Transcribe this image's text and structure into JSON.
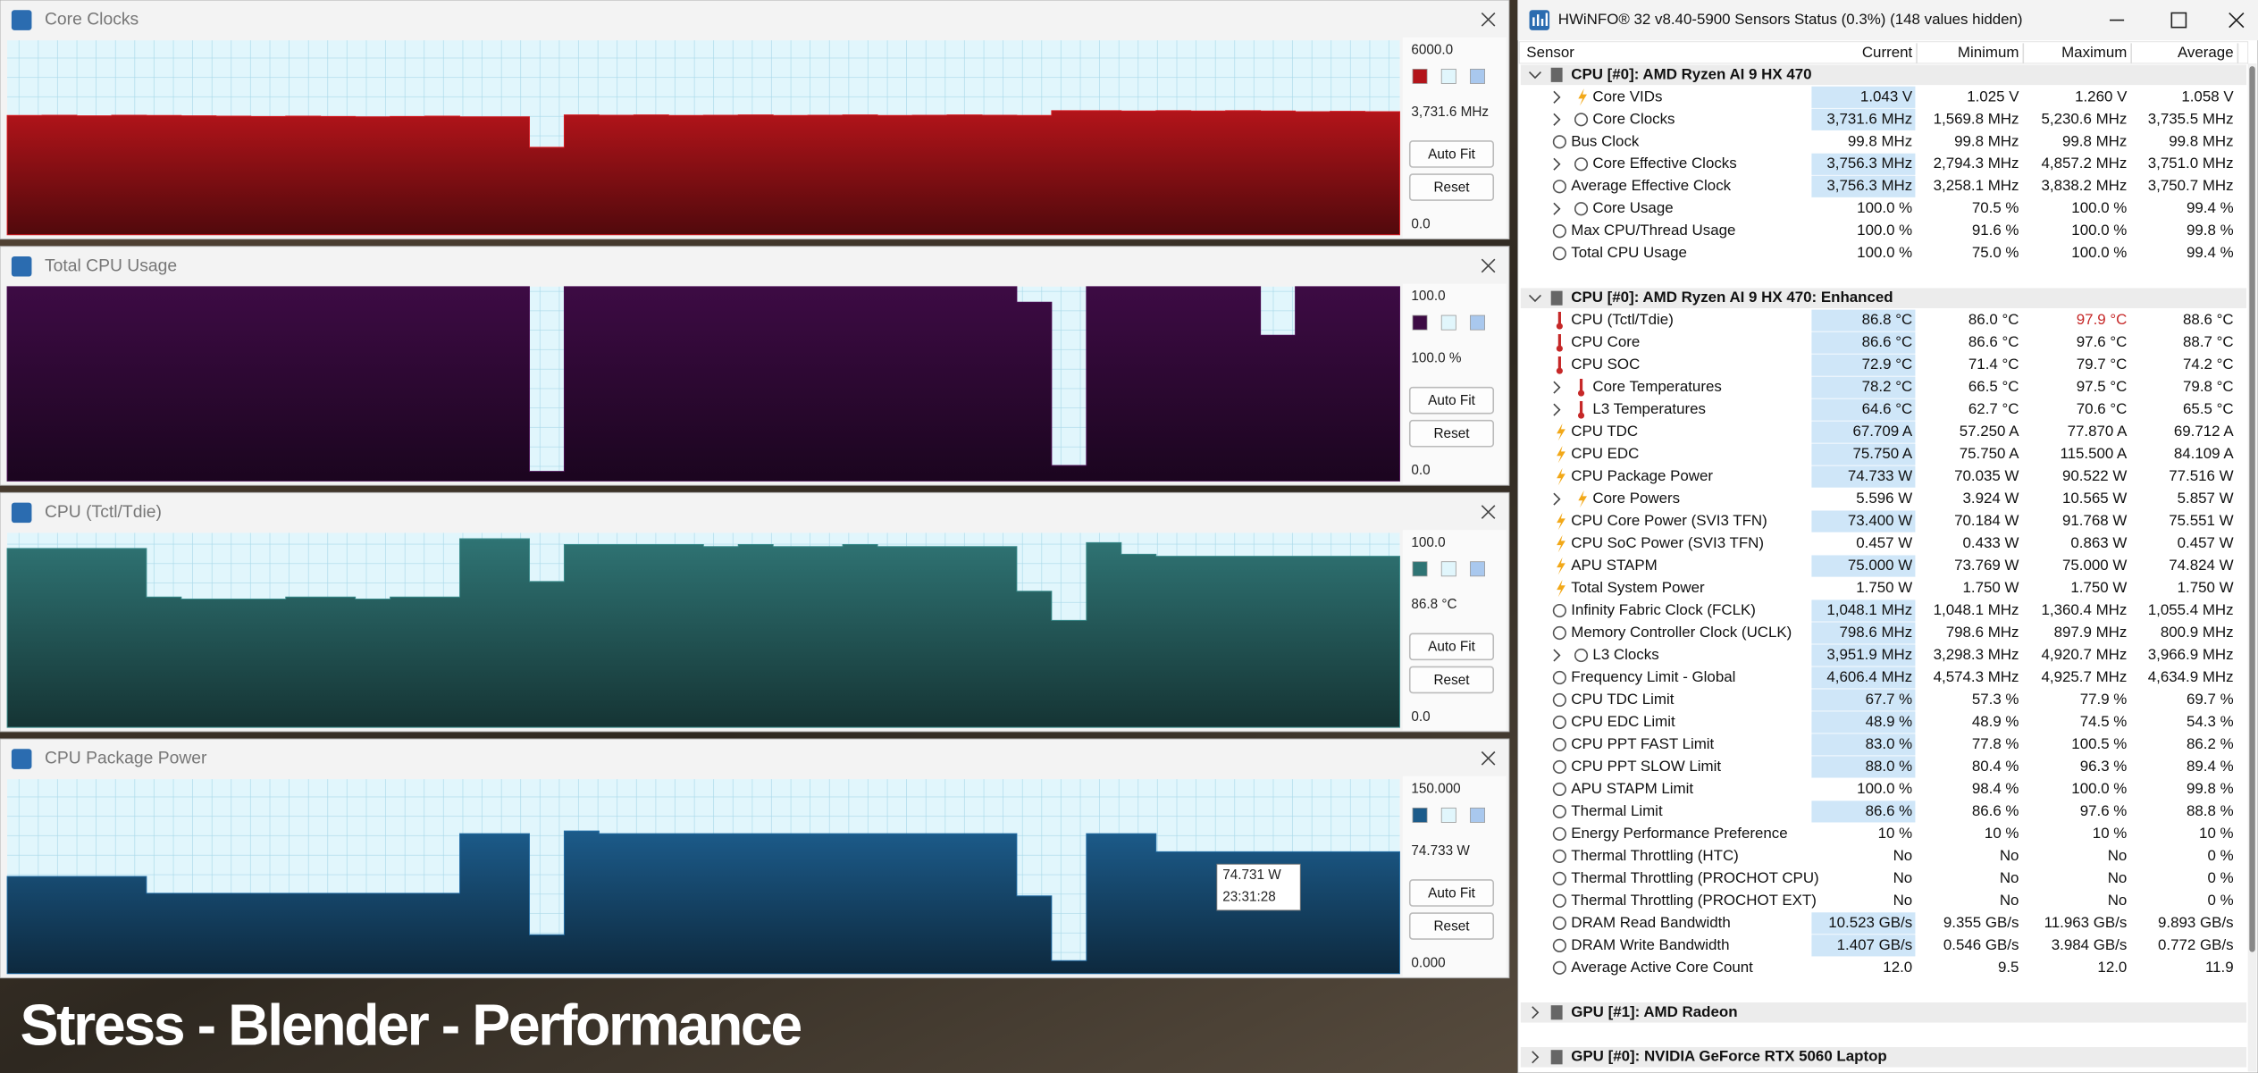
{
  "graphs": [
    {
      "title": "Core Clocks",
      "yticks": [
        {
          "value": 0,
          "label": "0.0"
        },
        {
          "value": 6000,
          "label": "6000.0"
        }
      ],
      "ylim": [
        0,
        6000
      ],
      "current": "3,731.6 MHz",
      "auto_fit": "Auto Fit",
      "reset": "Reset",
      "color": "#b3141a",
      "values": [
        3680,
        3690,
        3670,
        3690,
        3680,
        3670,
        3660,
        3650,
        3660,
        3650,
        3640,
        3650,
        3660,
        3640,
        3640,
        2700,
        3700,
        3690,
        3700,
        3680,
        3690,
        3700,
        3680,
        3690,
        3700,
        3680,
        3690,
        3700,
        3690,
        3680,
        3830,
        3830,
        3820,
        3830,
        3820,
        3830,
        3820,
        3800,
        3810,
        3800
      ]
    },
    {
      "title": "Total CPU Usage",
      "yticks": [
        {
          "value": 0,
          "label": "0.0"
        },
        {
          "value": 100,
          "label": "100.0"
        }
      ],
      "ylim": [
        0,
        100
      ],
      "current": "100.0 %",
      "auto_fit": "Auto Fit",
      "reset": "Reset",
      "color": "#3d0b44",
      "values": [
        100,
        100,
        100,
        100,
        100,
        100,
        100,
        100,
        100,
        100,
        100,
        100,
        100,
        100,
        100,
        5,
        100,
        100,
        100,
        100,
        100,
        100,
        100,
        100,
        100,
        100,
        100,
        100,
        100,
        92,
        8,
        100,
        100,
        100,
        100,
        100,
        75,
        100,
        100,
        100
      ]
    },
    {
      "title": "CPU (Tctl/Tdie)",
      "yticks": [
        {
          "value": 0,
          "label": "0.0"
        },
        {
          "value": 100,
          "label": "100.0"
        }
      ],
      "ylim": [
        0,
        100
      ],
      "current": "86.8 °C",
      "auto_fit": "Auto Fit",
      "reset": "Reset",
      "color": "#2f7474",
      "values": [
        92,
        92,
        92,
        92,
        67,
        66,
        66,
        66,
        67,
        67,
        66,
        67,
        67,
        97,
        97,
        75,
        94,
        94,
        94,
        94,
        93,
        94,
        93,
        93,
        94,
        93,
        93,
        93,
        93,
        70,
        55,
        95,
        89,
        88,
        88,
        88,
        88,
        88,
        88,
        88
      ]
    },
    {
      "title": "CPU Package Power",
      "yticks": [
        {
          "value": 0,
          "label": "0.000"
        },
        {
          "value": 150,
          "label": "150.000"
        }
      ],
      "ylim": [
        0,
        150
      ],
      "current": "74.733 W",
      "auto_fit": "Auto Fit",
      "reset": "Reset",
      "color": "#1c5b8a",
      "values": [
        75,
        75,
        75,
        75,
        62,
        62,
        62,
        62,
        62,
        62,
        62,
        62,
        62,
        108,
        108,
        30,
        110,
        108,
        108,
        108,
        108,
        108,
        108,
        108,
        108,
        108,
        108,
        108,
        108,
        60,
        10,
        108,
        108,
        94,
        94,
        94,
        94,
        94,
        94,
        94
      ],
      "tooltip": [
        "74.731 W",
        "23:31:28"
      ]
    }
  ],
  "caption": "Stress - Blender - Performance",
  "sensors": {
    "title": "HWiNFO® 32 v8.40-5900 Sensors Status (0.3%) (148 values hidden)",
    "columns": [
      "Sensor",
      "Current",
      "Minimum",
      "Maximum",
      "Average"
    ],
    "groups": [
      {
        "title": "CPU [#0]: AMD Ryzen AI 9 HX 470",
        "expanded": true,
        "rows": [
          {
            "label": "Core VIDs",
            "icon": "bolt",
            "expandable": true,
            "highlight": true,
            "cells": [
              "1.043 V",
              "1.025 V",
              "1.260 V",
              "1.058 V"
            ]
          },
          {
            "label": "Core Clocks",
            "icon": "clock",
            "expandable": true,
            "highlight": true,
            "cells": [
              "3,731.6 MHz",
              "1,569.8 MHz",
              "5,230.6 MHz",
              "3,735.5 MHz"
            ]
          },
          {
            "label": "Bus Clock",
            "icon": "clock",
            "expandable": false,
            "highlight": false,
            "cells": [
              "99.8 MHz",
              "99.8 MHz",
              "99.8 MHz",
              "99.8 MHz"
            ]
          },
          {
            "label": "Core Effective Clocks",
            "icon": "clock",
            "expandable": true,
            "highlight": true,
            "cells": [
              "3,756.3 MHz",
              "2,794.3 MHz",
              "4,857.2 MHz",
              "3,751.0 MHz"
            ]
          },
          {
            "label": "Average Effective Clock",
            "icon": "clock",
            "expandable": false,
            "highlight": true,
            "cells": [
              "3,756.3 MHz",
              "3,258.1 MHz",
              "3,838.2 MHz",
              "3,750.7 MHz"
            ]
          },
          {
            "label": "Core Usage",
            "icon": "clock",
            "expandable": true,
            "highlight": false,
            "cells": [
              "100.0 %",
              "70.5 %",
              "100.0 %",
              "99.4 %"
            ]
          },
          {
            "label": "Max CPU/Thread Usage",
            "icon": "clock",
            "expandable": false,
            "highlight": false,
            "cells": [
              "100.0 %",
              "91.6 %",
              "100.0 %",
              "99.8 %"
            ]
          },
          {
            "label": "Total CPU Usage",
            "icon": "clock",
            "expandable": false,
            "highlight": false,
            "cells": [
              "100.0 %",
              "75.0 %",
              "100.0 %",
              "99.4 %"
            ]
          }
        ]
      },
      {
        "title": "CPU [#0]: AMD Ryzen AI 9 HX 470: Enhanced",
        "expanded": true,
        "rows": [
          {
            "label": "CPU (Tctl/Tdie)",
            "icon": "thermo",
            "expandable": false,
            "highlight": true,
            "cells": [
              "86.8 °C",
              "86.0 °C",
              "97.9 °C",
              "88.6 °C"
            ],
            "alert_color": "#c62828"
          },
          {
            "label": "CPU Core",
            "icon": "thermo",
            "expandable": false,
            "highlight": true,
            "cells": [
              "86.6 °C",
              "86.6 °C",
              "97.6 °C",
              "88.7 °C"
            ]
          },
          {
            "label": "CPU SOC",
            "icon": "thermo",
            "expandable": false,
            "highlight": true,
            "cells": [
              "72.9 °C",
              "71.4 °C",
              "79.7 °C",
              "74.2 °C"
            ]
          },
          {
            "label": "Core Temperatures",
            "icon": "thermo",
            "expandable": true,
            "highlight": true,
            "cells": [
              "78.2 °C",
              "66.5 °C",
              "97.5 °C",
              "79.8 °C"
            ]
          },
          {
            "label": "L3 Temperatures",
            "icon": "thermo",
            "expandable": true,
            "highlight": true,
            "cells": [
              "64.6 °C",
              "62.7 °C",
              "70.6 °C",
              "65.5 °C"
            ]
          },
          {
            "label": "CPU TDC",
            "icon": "bolt",
            "expandable": false,
            "highlight": true,
            "cells": [
              "67.709 A",
              "57.250 A",
              "77.870 A",
              "69.712 A"
            ]
          },
          {
            "label": "CPU EDC",
            "icon": "bolt",
            "expandable": false,
            "highlight": true,
            "cells": [
              "75.750 A",
              "75.750 A",
              "115.500 A",
              "84.109 A"
            ]
          },
          {
            "label": "CPU Package Power",
            "icon": "bolt",
            "expandable": false,
            "highlight": true,
            "cells": [
              "74.733 W",
              "70.035 W",
              "90.522 W",
              "77.516 W"
            ]
          },
          {
            "label": "Core Powers",
            "icon": "bolt",
            "expandable": true,
            "highlight": false,
            "cells": [
              "5.596 W",
              "3.924 W",
              "10.565 W",
              "5.857 W"
            ]
          },
          {
            "label": "CPU Core Power (SVI3 TFN)",
            "icon": "bolt",
            "expandable": false,
            "highlight": true,
            "cells": [
              "73.400 W",
              "70.184 W",
              "91.768 W",
              "75.551 W"
            ]
          },
          {
            "label": "CPU SoC Power (SVI3 TFN)",
            "icon": "bolt",
            "expandable": false,
            "highlight": false,
            "cells": [
              "0.457 W",
              "0.433 W",
              "0.863 W",
              "0.457 W"
            ]
          },
          {
            "label": "APU STAPM",
            "icon": "bolt",
            "expandable": false,
            "highlight": true,
            "cells": [
              "75.000 W",
              "73.769 W",
              "75.000 W",
              "74.824 W"
            ]
          },
          {
            "label": "Total System Power",
            "icon": "bolt",
            "expandable": false,
            "highlight": false,
            "cells": [
              "1.750 W",
              "1.750 W",
              "1.750 W",
              "1.750 W"
            ]
          },
          {
            "label": "Infinity Fabric Clock (FCLK)",
            "icon": "clock",
            "expandable": false,
            "highlight": true,
            "cells": [
              "1,048.1 MHz",
              "1,048.1 MHz",
              "1,360.4 MHz",
              "1,055.4 MHz"
            ]
          },
          {
            "label": "Memory Controller Clock (UCLK)",
            "icon": "clock",
            "expandable": false,
            "highlight": true,
            "cells": [
              "798.6 MHz",
              "798.6 MHz",
              "897.9 MHz",
              "800.9 MHz"
            ]
          },
          {
            "label": "L3 Clocks",
            "icon": "clock",
            "expandable": true,
            "highlight": true,
            "cells": [
              "3,951.9 MHz",
              "3,298.3 MHz",
              "4,920.7 MHz",
              "3,966.9 MHz"
            ]
          },
          {
            "label": "Frequency Limit - Global",
            "icon": "clock",
            "expandable": false,
            "highlight": true,
            "cells": [
              "4,606.4 MHz",
              "4,574.3 MHz",
              "4,925.7 MHz",
              "4,634.9 MHz"
            ]
          },
          {
            "label": "CPU TDC Limit",
            "icon": "clock",
            "expandable": false,
            "highlight": true,
            "cells": [
              "67.7 %",
              "57.3 %",
              "77.9 %",
              "69.7 %"
            ]
          },
          {
            "label": "CPU EDC Limit",
            "icon": "clock",
            "expandable": false,
            "highlight": true,
            "cells": [
              "48.9 %",
              "48.9 %",
              "74.5 %",
              "54.3 %"
            ]
          },
          {
            "label": "CPU PPT FAST Limit",
            "icon": "clock",
            "expandable": false,
            "highlight": true,
            "cells": [
              "83.0 %",
              "77.8 %",
              "100.5 %",
              "86.2 %"
            ]
          },
          {
            "label": "CPU PPT SLOW Limit",
            "icon": "clock",
            "expandable": false,
            "highlight": true,
            "cells": [
              "88.0 %",
              "80.4 %",
              "96.3 %",
              "89.4 %"
            ]
          },
          {
            "label": "APU STAPM Limit",
            "icon": "clock",
            "expandable": false,
            "highlight": false,
            "cells": [
              "100.0 %",
              "98.4 %",
              "100.0 %",
              "99.8 %"
            ]
          },
          {
            "label": "Thermal Limit",
            "icon": "clock",
            "expandable": false,
            "highlight": true,
            "cells": [
              "86.6 %",
              "86.6 %",
              "97.6 %",
              "88.8 %"
            ]
          },
          {
            "label": "Energy Performance Preference",
            "icon": "clock",
            "expandable": false,
            "highlight": false,
            "cells": [
              "10 %",
              "10 %",
              "10 %",
              "10 %"
            ]
          },
          {
            "label": "Thermal Throttling (HTC)",
            "icon": "clock",
            "expandable": false,
            "highlight": false,
            "cells": [
              "No",
              "No",
              "No",
              "0 %"
            ]
          },
          {
            "label": "Thermal Throttling (PROCHOT CPU)",
            "icon": "clock",
            "expandable": false,
            "highlight": false,
            "cells": [
              "No",
              "No",
              "No",
              "0 %"
            ]
          },
          {
            "label": "Thermal Throttling (PROCHOT EXT)",
            "icon": "clock",
            "expandable": false,
            "highlight": false,
            "cells": [
              "No",
              "No",
              "No",
              "0 %"
            ]
          },
          {
            "label": "DRAM Read Bandwidth",
            "icon": "clock",
            "expandable": false,
            "highlight": true,
            "cells": [
              "10.523 GB/s",
              "9.355 GB/s",
              "11.963 GB/s",
              "9.893 GB/s"
            ]
          },
          {
            "label": "DRAM Write Bandwidth",
            "icon": "clock",
            "expandable": false,
            "highlight": true,
            "cells": [
              "1.407 GB/s",
              "0.546 GB/s",
              "3.984 GB/s",
              "0.772 GB/s"
            ]
          },
          {
            "label": "Average Active Core Count",
            "icon": "clock",
            "expandable": false,
            "highlight": false,
            "cells": [
              "12.0",
              "9.5",
              "12.0",
              "11.9"
            ]
          }
        ]
      },
      {
        "title": "GPU [#1]: AMD Radeon",
        "expanded": false,
        "rows": []
      },
      {
        "title": "GPU [#0]: NVIDIA GeForce RTX 5060 Laptop",
        "expanded": false,
        "rows": []
      }
    ]
  }
}
